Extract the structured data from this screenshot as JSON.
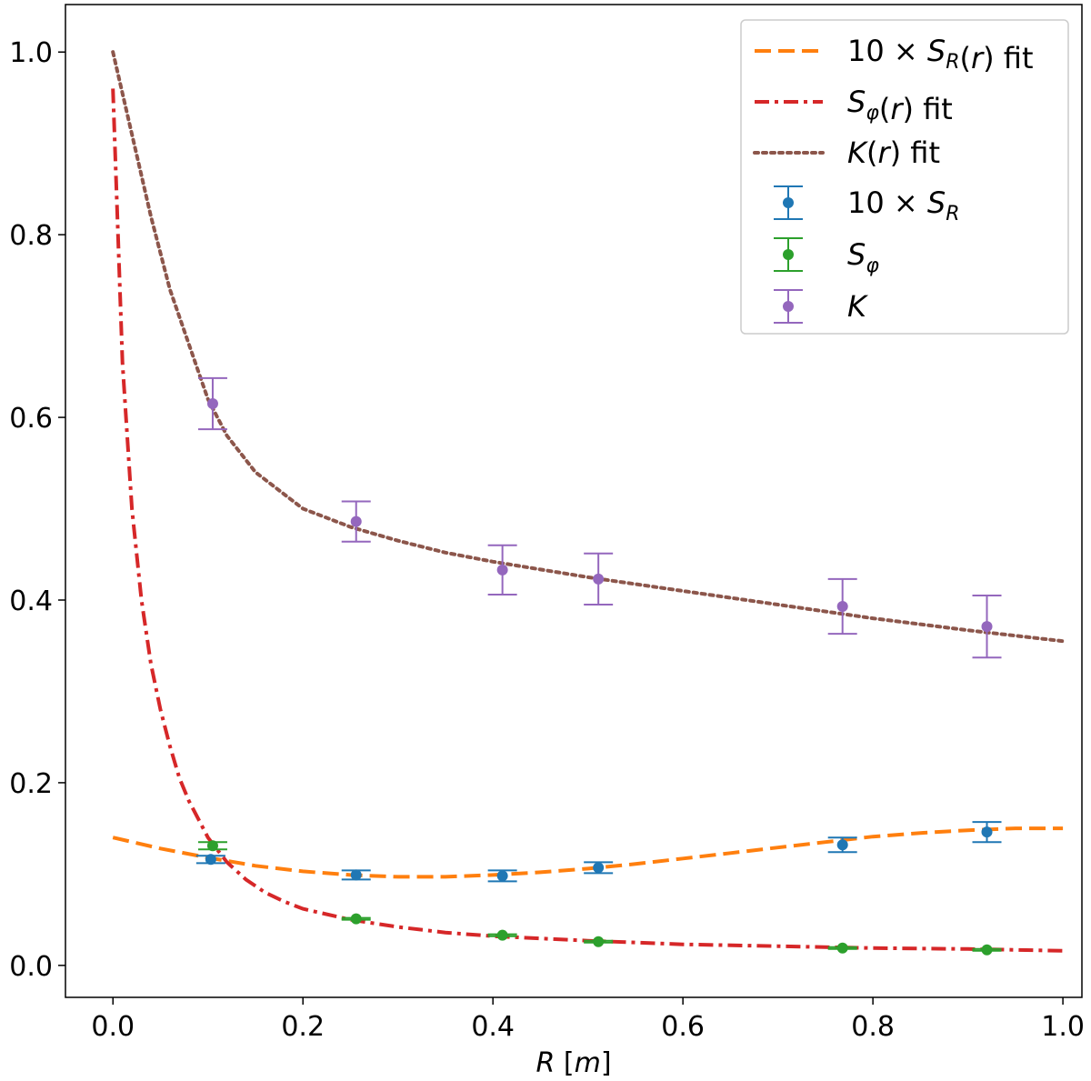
{
  "chart_data": {
    "type": "line",
    "title": "",
    "xlabel": "R [m]",
    "ylabel": "",
    "xlim": [
      -0.05,
      1.02
    ],
    "ylim": [
      -0.035,
      1.052
    ],
    "xticks": [
      0.0,
      0.2,
      0.4,
      0.6,
      0.8,
      1.0
    ],
    "xtick_labels": [
      "0.0",
      "0.2",
      "0.4",
      "0.6",
      "0.8",
      "1.0"
    ],
    "yticks": [
      0.0,
      0.2,
      0.4,
      0.6,
      0.8,
      1.0
    ],
    "ytick_labels": [
      "0.0",
      "0.2",
      "0.4",
      "0.6",
      "0.8",
      "1.0"
    ],
    "grid": false,
    "legend_position": "top-right",
    "legend_entries": [
      "10 × S_R(r) fit",
      "S_φ(r) fit",
      "K(r) fit",
      "10 × S_R",
      "S_φ",
      "K"
    ],
    "fit_curves": [
      {
        "name": "10 × S_R(r) fit",
        "color": "#ff7f0e",
        "style": "dashed",
        "x": [
          0.0,
          0.05,
          0.1,
          0.15,
          0.2,
          0.25,
          0.3,
          0.35,
          0.4,
          0.45,
          0.5,
          0.55,
          0.6,
          0.65,
          0.7,
          0.75,
          0.8,
          0.85,
          0.9,
          0.95,
          1.0
        ],
        "y": [
          0.14,
          0.128,
          0.118,
          0.109,
          0.103,
          0.099,
          0.097,
          0.097,
          0.099,
          0.102,
          0.106,
          0.111,
          0.117,
          0.123,
          0.129,
          0.135,
          0.141,
          0.145,
          0.148,
          0.15,
          0.15
        ]
      },
      {
        "name": "S_φ(r) fit",
        "color": "#d62728",
        "style": "dashdot",
        "x": [
          0.0,
          0.01,
          0.02,
          0.03,
          0.04,
          0.05,
          0.06,
          0.07,
          0.08,
          0.09,
          0.1,
          0.12,
          0.14,
          0.16,
          0.18,
          0.2,
          0.25,
          0.3,
          0.35,
          0.4,
          0.5,
          0.6,
          0.7,
          0.8,
          0.9,
          1.0
        ],
        "y": [
          0.96,
          0.66,
          0.5,
          0.4,
          0.33,
          0.28,
          0.24,
          0.205,
          0.18,
          0.16,
          0.14,
          0.113,
          0.094,
          0.08,
          0.07,
          0.062,
          0.05,
          0.042,
          0.036,
          0.032,
          0.027,
          0.023,
          0.021,
          0.019,
          0.018,
          0.016
        ]
      },
      {
        "name": "K(r) fit",
        "color": "#8c564b",
        "style": "dotted",
        "x": [
          0.0,
          0.02,
          0.04,
          0.06,
          0.08,
          0.1,
          0.12,
          0.15,
          0.2,
          0.25,
          0.3,
          0.35,
          0.4,
          0.5,
          0.6,
          0.7,
          0.8,
          0.9,
          1.0
        ],
        "y": [
          1.0,
          0.91,
          0.82,
          0.74,
          0.68,
          0.62,
          0.58,
          0.54,
          0.5,
          0.48,
          0.465,
          0.452,
          0.442,
          0.425,
          0.41,
          0.395,
          0.38,
          0.367,
          0.355
        ]
      }
    ],
    "measurements": [
      {
        "name": "10 × S_R",
        "color": "#1f77b4",
        "x": [
          0.103,
          0.256,
          0.41,
          0.511,
          0.768,
          0.92
        ],
        "y": [
          0.116,
          0.099,
          0.098,
          0.107,
          0.132,
          0.146
        ],
        "yerr": [
          0.004,
          0.005,
          0.006,
          0.006,
          0.008,
          0.011
        ]
      },
      {
        "name": "S_φ",
        "color": "#2ca02c",
        "x": [
          0.105,
          0.256,
          0.41,
          0.511,
          0.768,
          0.92
        ],
        "y": [
          0.131,
          0.051,
          0.033,
          0.026,
          0.019,
          0.017
        ],
        "yerr": [
          0.004,
          0.001,
          0.001,
          0.001,
          0.001,
          0.001
        ]
      },
      {
        "name": "K",
        "color": "#9467bd",
        "x": [
          0.105,
          0.256,
          0.41,
          0.511,
          0.768,
          0.92
        ],
        "y": [
          0.615,
          0.486,
          0.433,
          0.423,
          0.393,
          0.371
        ],
        "yerr": [
          0.028,
          0.022,
          0.027,
          0.028,
          0.03,
          0.034
        ]
      }
    ]
  }
}
